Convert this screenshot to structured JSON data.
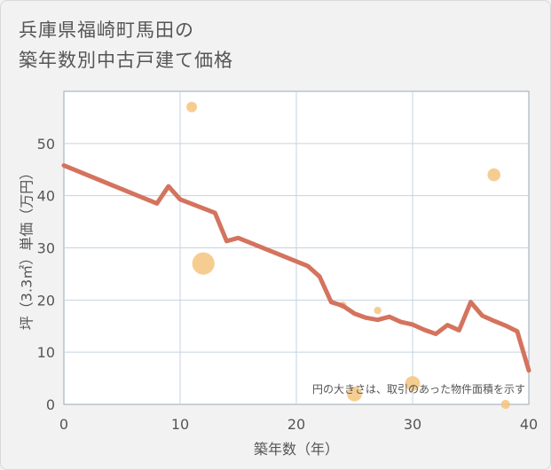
{
  "title": {
    "line1": "兵庫県福崎町馬田の",
    "line2": "築年数別中古戸建て価格"
  },
  "chart_data": {
    "type": "scatter",
    "title": "兵庫県福崎町馬田の築年数別中古戸建て価格",
    "xlabel": "築年数（年）",
    "ylabel": "坪（3.3㎡）単価（万円）",
    "xlim": [
      0,
      40
    ],
    "ylim": [
      0,
      60
    ],
    "xticks": [
      0,
      10,
      20,
      30,
      40
    ],
    "yticks": [
      0,
      10,
      20,
      30,
      40,
      50
    ],
    "grid": true,
    "note": "円の大きさは、取引のあった物件面積を示す",
    "colors": {
      "line": "#d4735e",
      "bubble": "#f5c47e",
      "grid": "#c5d3e0",
      "plot_bg": "#ffffff"
    },
    "bubbles": [
      {
        "x": 11,
        "y": 57,
        "size": 2
      },
      {
        "x": 12,
        "y": 27,
        "size": 9
      },
      {
        "x": 24,
        "y": 19,
        "size": 1
      },
      {
        "x": 25,
        "y": 2,
        "size": 4
      },
      {
        "x": 27,
        "y": 18,
        "size": 1
      },
      {
        "x": 30,
        "y": 4,
        "size": 4
      },
      {
        "x": 37,
        "y": 44,
        "size": 3
      },
      {
        "x": 38,
        "y": 0,
        "size": 1.5
      }
    ],
    "trend": {
      "x": [
        0,
        8,
        9,
        10,
        13,
        14,
        15,
        21,
        22,
        23,
        24,
        25,
        26,
        27,
        28,
        29,
        30,
        31,
        32,
        33,
        34,
        35,
        36,
        37,
        38,
        39,
        40
      ],
      "y": [
        45.8,
        38.5,
        41.8,
        39.3,
        36.7,
        31.3,
        31.9,
        26.5,
        24.5,
        19.6,
        18.9,
        17.4,
        16.6,
        16.2,
        16.8,
        15.8,
        15.3,
        14.3,
        13.5,
        15.2,
        14.2,
        19.6,
        17.0,
        16.0,
        15.1,
        14.0,
        6.5
      ]
    }
  }
}
